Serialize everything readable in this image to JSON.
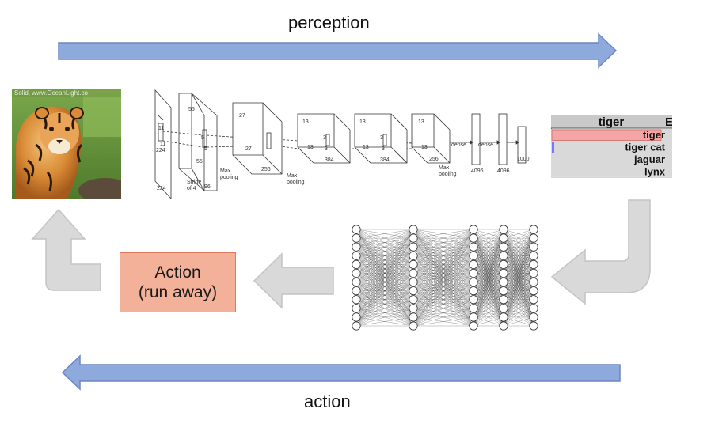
{
  "flow": {
    "top_label": "perception",
    "bottom_label": "action"
  },
  "photo": {
    "watermark": "Solid, www.OceanLight.co"
  },
  "cnn": {
    "labels": {
      "l224a": "224",
      "l224b": "224",
      "l11a": "11",
      "l11b": "11",
      "stride": "Stride",
      "of4": "of 4",
      "l55a": "55",
      "l55b": "55",
      "l96": "96",
      "l5a": "5",
      "l5b": "5",
      "maxpool1a": "Max",
      "maxpool1b": "pooling",
      "l27a": "27",
      "l27b": "27",
      "l256a": "256",
      "maxpool2a": "Max",
      "maxpool2b": "pooling",
      "l13a": "13",
      "l13b": "13",
      "l3a": "3",
      "l3b": "3",
      "l384a": "384",
      "l13c": "13",
      "l13d": "13",
      "l3c": "3",
      "l3d": "3",
      "l384b": "384",
      "l13e": "13",
      "l13f": "13",
      "l256b": "256",
      "maxpool3a": "Max",
      "maxpool3b": "pooling",
      "dense1": "dense",
      "dense2": "dense",
      "d4096a": "4096",
      "d4096b": "4096",
      "d1000": "1000"
    }
  },
  "predictions": {
    "header": "tiger",
    "header_right": "E",
    "items": [
      {
        "label": "tiger",
        "score": 0.92,
        "color": "#f4a6a6"
      },
      {
        "label": "tiger cat",
        "score": 0.02,
        "color": "#7777ff"
      },
      {
        "label": "jaguar",
        "score": 0.0,
        "color": "#cccccc"
      },
      {
        "label": "lynx",
        "score": 0.0,
        "color": "#cccccc"
      }
    ]
  },
  "action_box": {
    "line1": "Action",
    "line2": "(run away)",
    "fill": "#f4b19a",
    "border": "#e07a5f"
  },
  "colors": {
    "blue_arrow": "#8ea9db",
    "blue_arrow_border": "#6b86c2",
    "gray_arrow": "#d9d9d9",
    "gray_arrow_border": "#c4c4c4"
  },
  "mlp": {
    "layers": [
      12,
      12,
      12,
      12,
      12
    ]
  }
}
